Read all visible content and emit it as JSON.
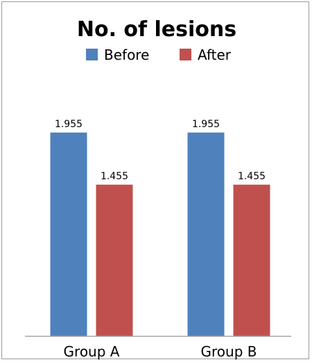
{
  "chart_data": {
    "type": "bar",
    "title": "No. of lesions",
    "categories": [
      "Group A",
      "Group B"
    ],
    "series": [
      {
        "name": "Before",
        "values": [
          1.955,
          1.955
        ],
        "labels": [
          "1.955",
          "1.955"
        ],
        "color": "#4f81bd"
      },
      {
        "name": "After",
        "values": [
          1.455,
          1.455
        ],
        "labels": [
          "1.455",
          "1.455"
        ],
        "color": "#c0504d"
      }
    ],
    "ylim": [
      0,
      2.5
    ],
    "legend_position": "top",
    "grid": false,
    "axis_color": "#a6a6a6"
  }
}
